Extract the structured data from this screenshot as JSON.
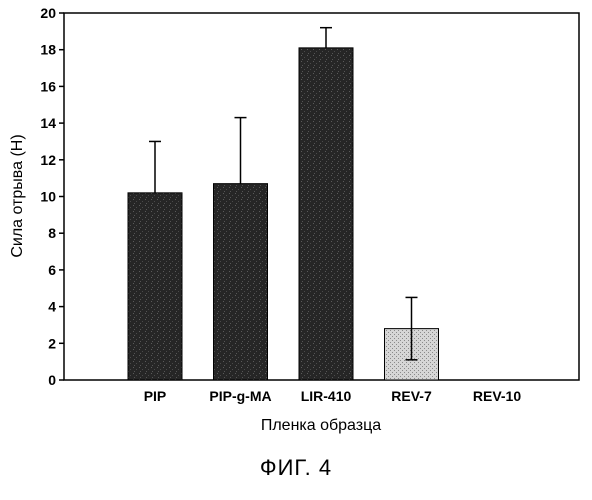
{
  "chart_data": {
    "type": "bar",
    "categories": [
      "PIP",
      "PIP-g-MA",
      "LIR-410",
      "REV-7",
      "REV-10"
    ],
    "values": [
      10.2,
      10.7,
      18.1,
      2.8,
      0
    ],
    "errors": [
      2.8,
      3.6,
      1.1,
      1.7,
      0
    ],
    "bar_colors": [
      "#262626",
      "#262626",
      "#262626",
      "#cfcfcf",
      "#cfcfcf"
    ],
    "xlabel": "Пленка образца",
    "ylabel": "Сила отрыва (Н)",
    "ylim": [
      0,
      20
    ],
    "yticks": [
      "0",
      "2",
      "4",
      "6",
      "8",
      "10",
      "12",
      "14",
      "16",
      "18",
      "20"
    ],
    "grid": false
  },
  "caption": "ФИГ. 4"
}
